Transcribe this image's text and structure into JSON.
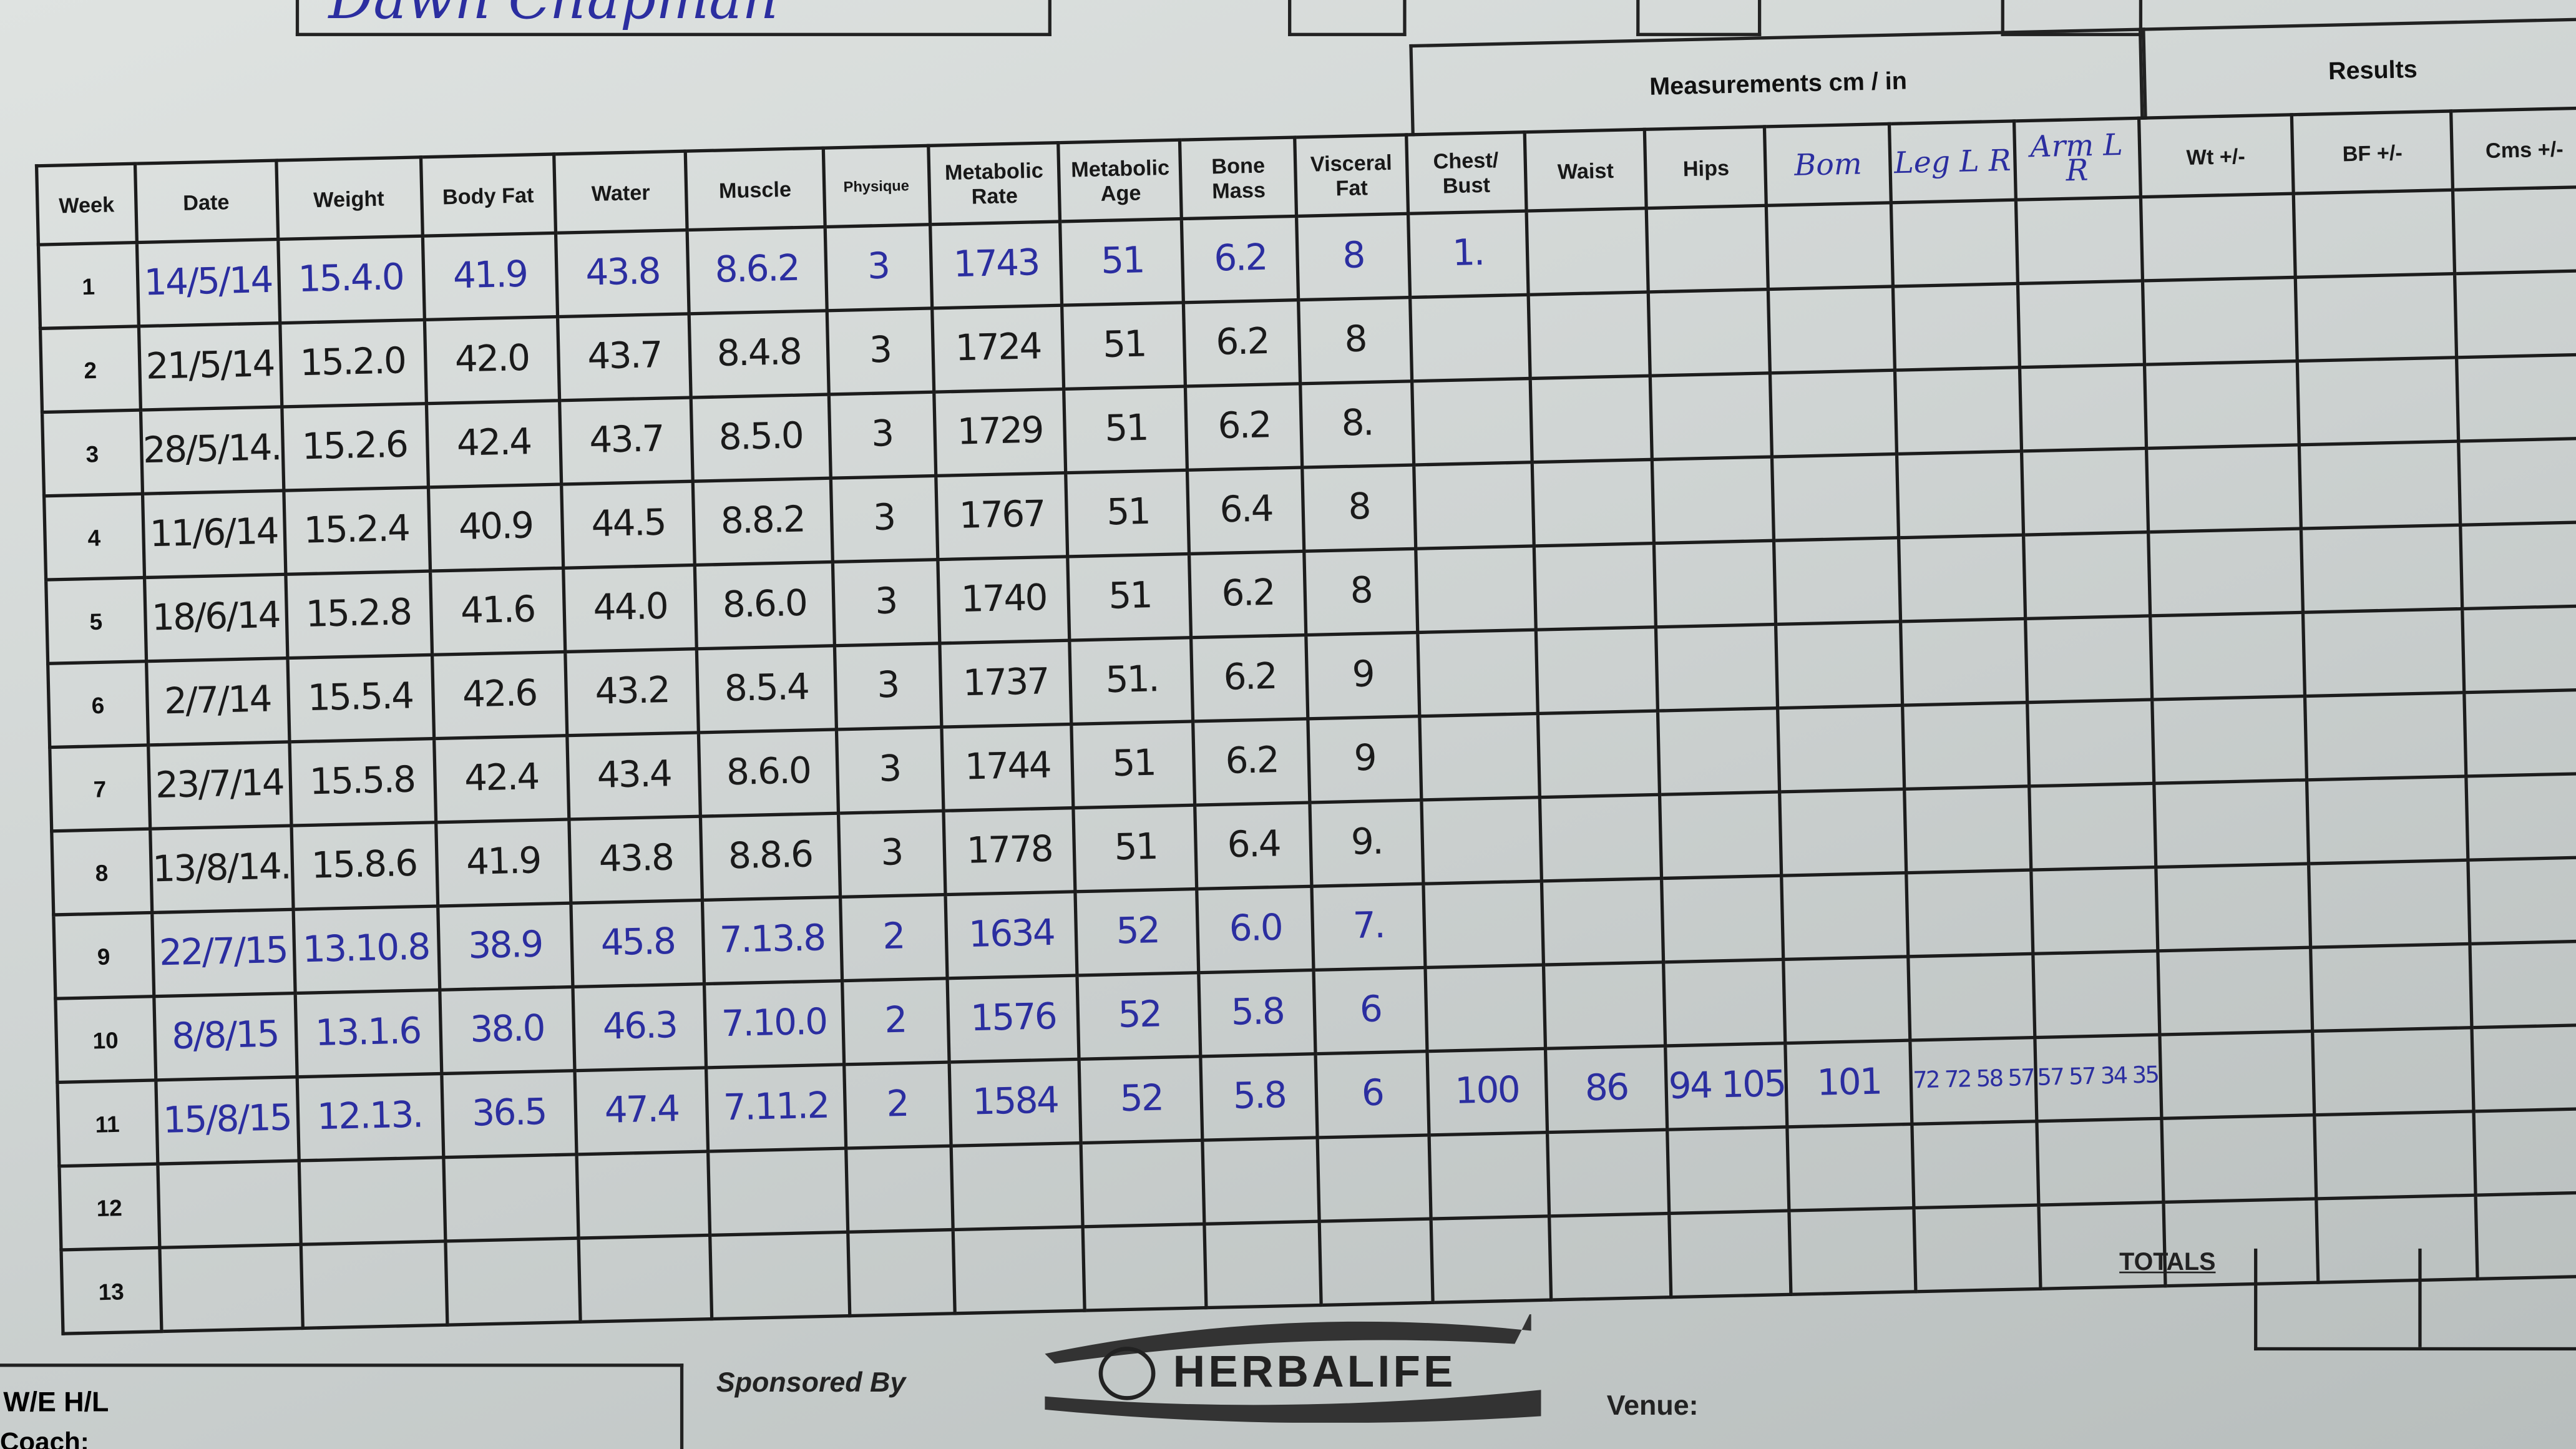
{
  "header": {
    "client_name": "Dawn Chapman"
  },
  "groups": {
    "measurements": "Measurements cm / in",
    "results": "Results"
  },
  "columns": [
    "Week",
    "Date",
    "Weight",
    "Body Fat",
    "Water",
    "Muscle",
    "Physique",
    "Metabolic Rate",
    "Metabolic Age",
    "Bone Mass",
    "Visceral Fat",
    "Chest/ Bust",
    "Waist",
    "Hips",
    "Bom",
    "Leg L R",
    "Arm L R",
    "Wt +/-",
    "BF +/-",
    "Cms +/-"
  ],
  "rows": [
    {
      "week": "1",
      "ink": "blue",
      "cells": [
        "14/5/14",
        "15.4.0",
        "41.9",
        "43.8",
        "8.6.2",
        "3",
        "1743",
        "51",
        "6.2",
        "8",
        "1.",
        "",
        "",
        "",
        "",
        "",
        "",
        "",
        ""
      ]
    },
    {
      "week": "2",
      "ink": "black",
      "cells": [
        "21/5/14",
        "15.2.0",
        "42.0",
        "43.7",
        "8.4.8",
        "3",
        "1724",
        "51",
        "6.2",
        "8",
        "",
        "",
        "",
        "",
        "",
        "",
        "",
        "",
        ""
      ]
    },
    {
      "week": "3",
      "ink": "black",
      "cells": [
        "28/5/14.",
        "15.2.6",
        "42.4",
        "43.7",
        "8.5.0",
        "3",
        "1729",
        "51",
        "6.2",
        "8.",
        "",
        "",
        "",
        "",
        "",
        "",
        "",
        "",
        ""
      ]
    },
    {
      "week": "4",
      "ink": "black",
      "cells": [
        "11/6/14",
        "15.2.4",
        "40.9",
        "44.5",
        "8.8.2",
        "3",
        "1767",
        "51",
        "6.4",
        "8",
        "",
        "",
        "",
        "",
        "",
        "",
        "",
        "",
        ""
      ]
    },
    {
      "week": "5",
      "ink": "black",
      "cells": [
        "18/6/14",
        "15.2.8",
        "41.6",
        "44.0",
        "8.6.0",
        "3",
        "1740",
        "51",
        "6.2",
        "8",
        "",
        "",
        "",
        "",
        "",
        "",
        "",
        "",
        ""
      ]
    },
    {
      "week": "6",
      "ink": "black",
      "cells": [
        "2/7/14",
        "15.5.4",
        "42.6",
        "43.2",
        "8.5.4",
        "3",
        "1737",
        "51.",
        "6.2",
        "9",
        "",
        "",
        "",
        "",
        "",
        "",
        "",
        "",
        ""
      ]
    },
    {
      "week": "7",
      "ink": "black",
      "cells": [
        "23/7/14",
        "15.5.8",
        "42.4",
        "43.4",
        "8.6.0",
        "3",
        "1744",
        "51",
        "6.2",
        "9",
        "",
        "",
        "",
        "",
        "",
        "",
        "",
        "",
        ""
      ]
    },
    {
      "week": "8",
      "ink": "black",
      "cells": [
        "13/8/14.",
        "15.8.6",
        "41.9",
        "43.8",
        "8.8.6",
        "3",
        "1778",
        "51",
        "6.4",
        "9.",
        "",
        "",
        "",
        "",
        "",
        "",
        "",
        "",
        ""
      ]
    },
    {
      "week": "9",
      "ink": "blue",
      "cells": [
        "22/7/15",
        "13.10.8",
        "38.9",
        "45.8",
        "7.13.8",
        "2",
        "1634",
        "52",
        "6.0",
        "7.",
        "",
        "",
        "",
        "",
        "",
        "",
        "",
        "",
        ""
      ]
    },
    {
      "week": "10",
      "ink": "blue",
      "cells": [
        "8/8/15",
        "13.1.6",
        "38.0",
        "46.3",
        "7.10.0",
        "2",
        "1576",
        "52",
        "5.8",
        "6",
        "",
        "",
        "",
        "",
        "",
        "",
        "",
        "",
        ""
      ]
    },
    {
      "week": "11",
      "ink": "blue",
      "cells": [
        "15/8/15",
        "12.13.",
        "36.5",
        "47.4",
        "7.11.2",
        "2",
        "1584",
        "52",
        "5.8",
        "6",
        "100",
        "86",
        "94 105",
        "101",
        "72 72 58 57",
        "57 57 34 35",
        "",
        "",
        ""
      ]
    },
    {
      "week": "12",
      "ink": "black",
      "cells": [
        "",
        "",
        "",
        "",
        "",
        "",
        "",
        "",
        "",
        "",
        "",
        "",
        "",
        "",
        "",
        "",
        "",
        "",
        ""
      ]
    },
    {
      "week": "13",
      "ink": "black",
      "cells": [
        "",
        "",
        "",
        "",
        "",
        "",
        "",
        "",
        "",
        "",
        "",
        "",
        "",
        "",
        "",
        "",
        "",
        "",
        ""
      ]
    }
  ],
  "footer": {
    "totals": "TOTALS",
    "we_hl": "W/E  H/L",
    "coach": "Coach:",
    "sponsored_by": "Sponsored By",
    "logo_text": "HERBALIFE",
    "venue": "Venue:"
  },
  "colors": {
    "ink_blue": "#2b2ea0",
    "ink_black": "#1a1a1a",
    "paper": "#d6dbd9"
  }
}
